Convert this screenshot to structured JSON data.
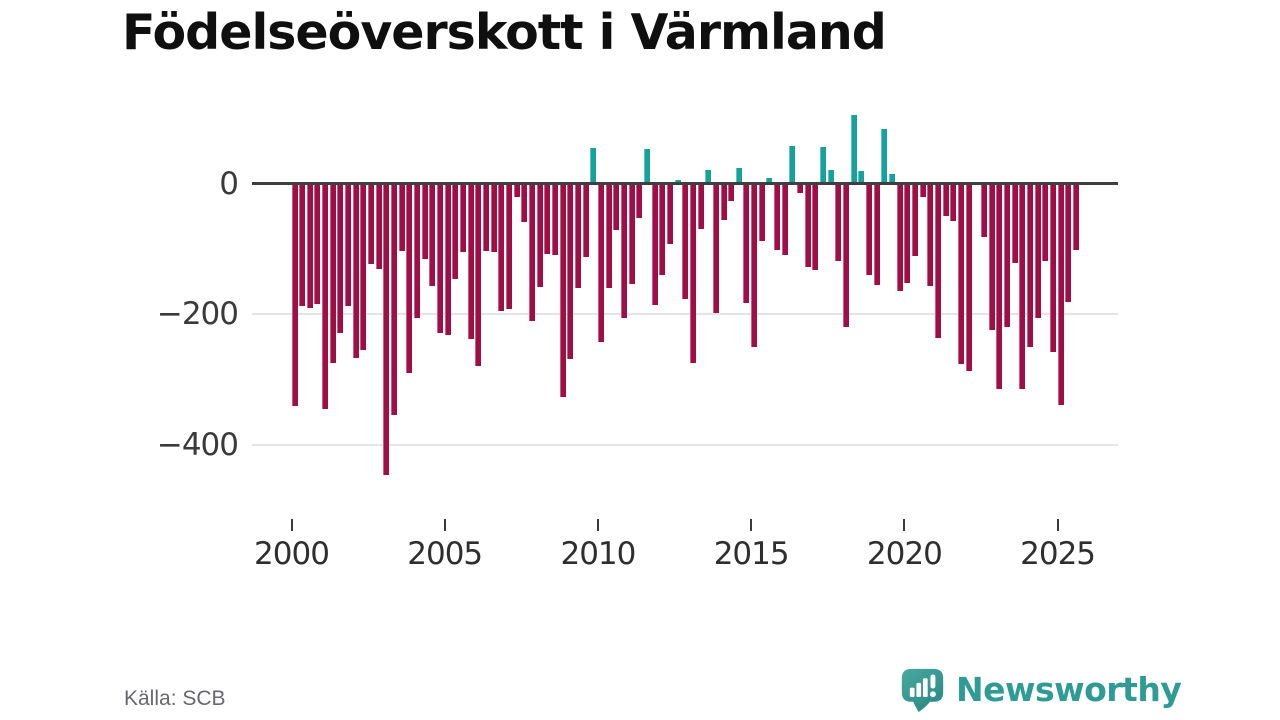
{
  "title": "Födelseöverskott i Värmland",
  "source": "Källa: SCB",
  "branding": {
    "name": "Newsworthy",
    "icon": "newsworthy-speech-bubble-chart-icon"
  },
  "colors": {
    "positive_bar": "#15a29c",
    "negative_bar": "#a00e46",
    "zero_line": "#3f3f3f",
    "gridline": "#e4e4e4",
    "axis_text": "#2e2e2e",
    "title_text": "#0f0f0f",
    "source_text": "#67676f",
    "brand_teal": "#2f9b95",
    "background": "#ffffff"
  },
  "chart_data": {
    "type": "bar",
    "title": "Födelseöverskott i Värmland",
    "xlabel": "",
    "ylabel": "",
    "ylim": [
      -460,
      120
    ],
    "grid": "horizontal",
    "legend": "none",
    "y_ticks": [
      {
        "value": 0,
        "label": "0"
      },
      {
        "value": -200,
        "label": "−200"
      },
      {
        "value": -400,
        "label": "−400"
      }
    ],
    "x_ticks": [
      {
        "year": 2000,
        "label": "2000"
      },
      {
        "year": 2005,
        "label": "2005"
      },
      {
        "year": 2010,
        "label": "2010"
      },
      {
        "year": 2015,
        "label": "2015"
      },
      {
        "year": 2020,
        "label": "2020"
      },
      {
        "year": 2025,
        "label": "2025"
      }
    ],
    "categories": [
      "2000Q1",
      "2000Q2",
      "2000Q3",
      "2000Q4",
      "2001Q1",
      "2001Q2",
      "2001Q3",
      "2001Q4",
      "2002Q1",
      "2002Q2",
      "2002Q3",
      "2002Q4",
      "2003Q1",
      "2003Q2",
      "2003Q3",
      "2003Q4",
      "2004Q1",
      "2004Q2",
      "2004Q3",
      "2004Q4",
      "2005Q1",
      "2005Q2",
      "2005Q3",
      "2005Q4",
      "2006Q1",
      "2006Q2",
      "2006Q3",
      "2006Q4",
      "2007Q1",
      "2007Q2",
      "2007Q3",
      "2007Q4",
      "2008Q1",
      "2008Q2",
      "2008Q3",
      "2008Q4",
      "2009Q1",
      "2009Q2",
      "2009Q3",
      "2009Q4",
      "2010Q1",
      "2010Q2",
      "2010Q3",
      "2010Q4",
      "2011Q1",
      "2011Q2",
      "2011Q3",
      "2011Q4",
      "2012Q1",
      "2012Q2",
      "2012Q3",
      "2012Q4",
      "2013Q1",
      "2013Q2",
      "2013Q3",
      "2013Q4",
      "2014Q1",
      "2014Q2",
      "2014Q3",
      "2014Q4",
      "2015Q1",
      "2015Q2",
      "2015Q3",
      "2015Q4",
      "2016Q1",
      "2016Q2",
      "2016Q3",
      "2016Q4",
      "2017Q1",
      "2017Q2",
      "2017Q3",
      "2017Q4",
      "2018Q1",
      "2018Q2",
      "2018Q3",
      "2018Q4",
      "2019Q1",
      "2019Q2",
      "2019Q3",
      "2019Q4",
      "2020Q1",
      "2020Q2",
      "2020Q3",
      "2020Q4",
      "2021Q1",
      "2021Q2",
      "2021Q3",
      "2021Q4",
      "2022Q1",
      "2022Q2",
      "2022Q3",
      "2022Q4",
      "2023Q1",
      "2023Q2",
      "2023Q3",
      "2023Q4",
      "2024Q1",
      "2024Q2",
      "2024Q3",
      "2024Q4",
      "2025Q1",
      "2025Q2",
      "2025Q3"
    ],
    "values": [
      -340,
      -187,
      -190,
      -185,
      -345,
      -274,
      -228,
      -187,
      -267,
      -254,
      -123,
      -131,
      -445,
      -354,
      -103,
      -290,
      -205,
      -115,
      -157,
      -228,
      -232,
      -146,
      -105,
      -238,
      -279,
      -103,
      -105,
      -195,
      -192,
      -21,
      -59,
      -210,
      -159,
      -108,
      -110,
      -326,
      -268,
      -160,
      -112,
      54,
      -242,
      -160,
      -71,
      -206,
      -153,
      -53,
      53,
      -186,
      -140,
      -92,
      6,
      -176,
      -275,
      -70,
      21,
      -198,
      -56,
      -27,
      24,
      -183,
      -250,
      -88,
      9,
      -101,
      -109,
      57,
      -15,
      -127,
      -132,
      56,
      21,
      -119,
      -219,
      104,
      19,
      -140,
      -155,
      83,
      15,
      -165,
      -152,
      -111,
      -21,
      -157,
      -237,
      -49,
      -57,
      -276,
      -286,
      -3,
      -82,
      -224,
      -314,
      -219,
      -121,
      -314,
      -250,
      -206,
      -119,
      -258,
      -339,
      -181,
      -101
    ]
  }
}
